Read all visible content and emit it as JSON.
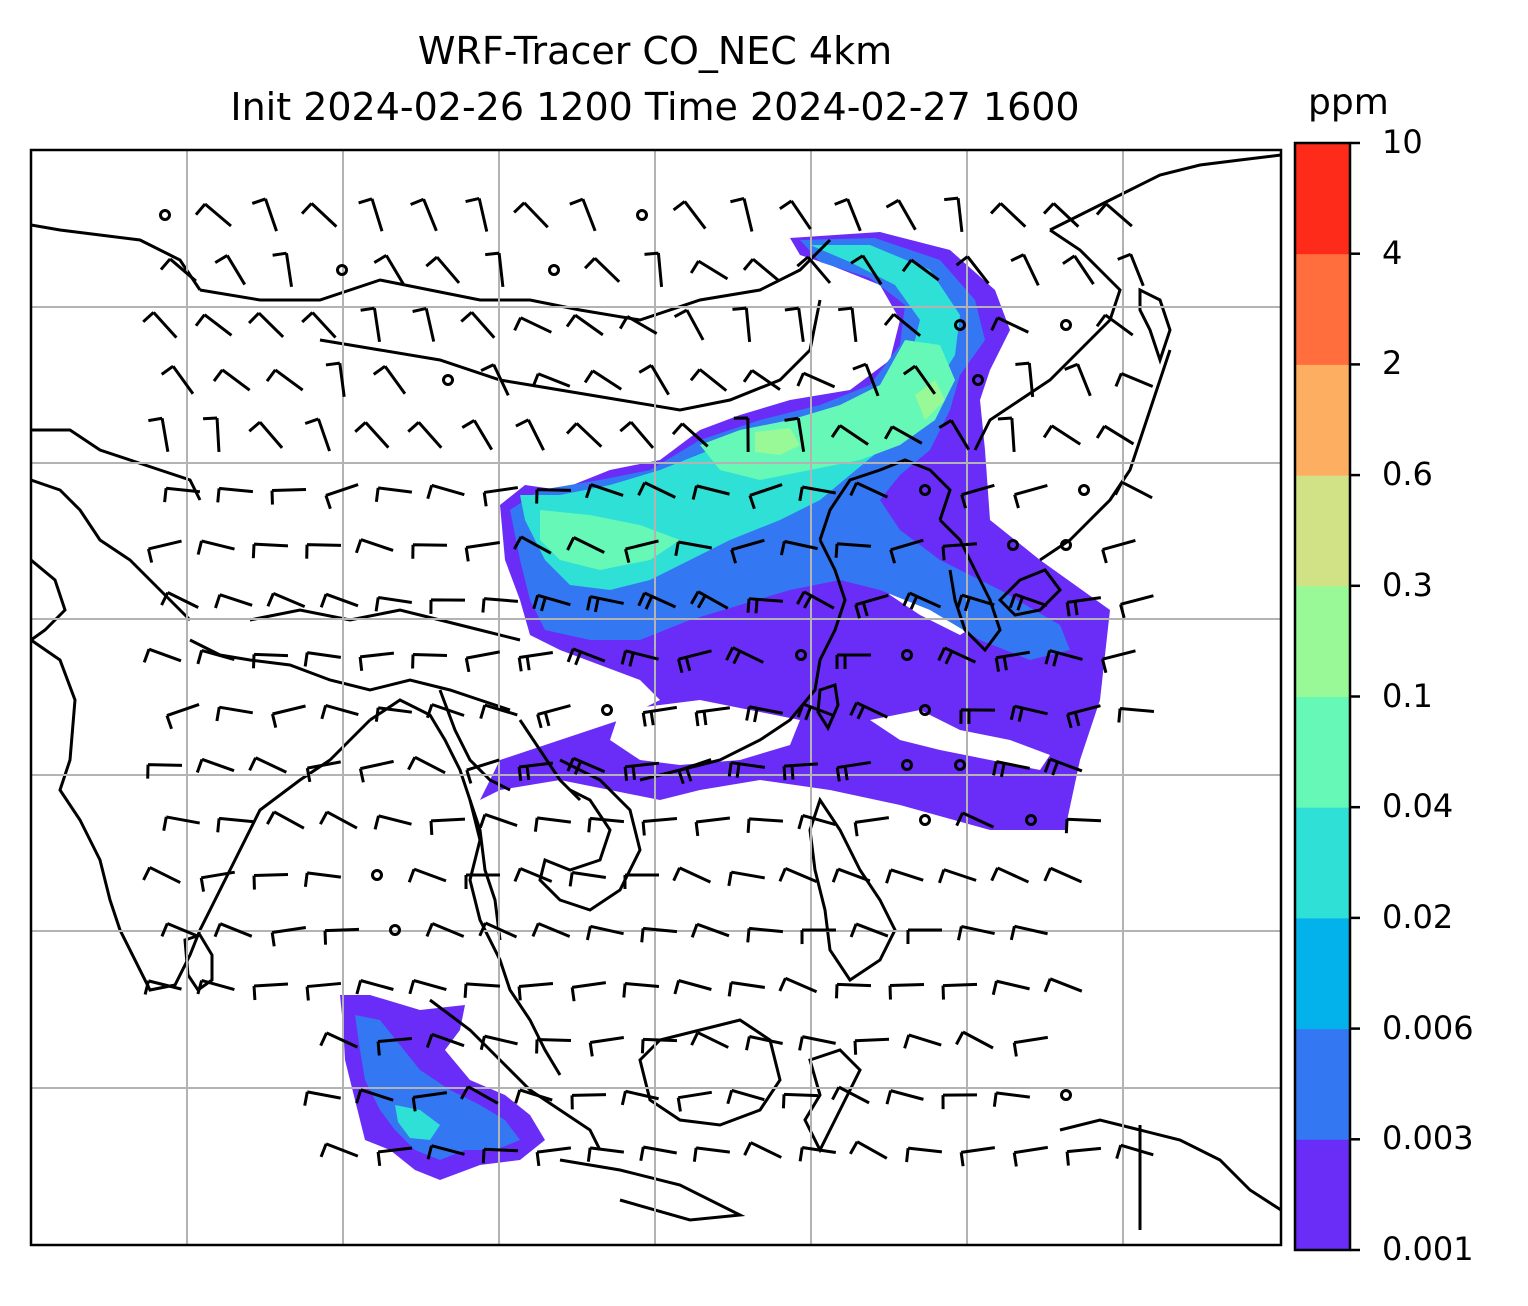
{
  "title": {
    "line1": "WRF-Tracer CO_NEC 4km",
    "line2": "Init 2024-02-26 1200 Time 2024-02-27 1600"
  },
  "colorbar": {
    "unit": "ppm",
    "levels": [
      "0.001",
      "0.003",
      "0.006",
      "0.02",
      "0.04",
      "0.1",
      "0.3",
      "0.6",
      "2",
      "4",
      "10"
    ],
    "colors": [
      "#6a2cf7",
      "#3477f2",
      "#04b2eb",
      "#2ee0d6",
      "#66f8b7",
      "#98f996",
      "#d1e286",
      "#fdae61",
      "#ff6e3c",
      "#ff2b1a"
    ]
  },
  "map": {
    "background": "#ffffff",
    "gridline_color": "#b3b3b3",
    "coastline_color": "#000000"
  }
}
